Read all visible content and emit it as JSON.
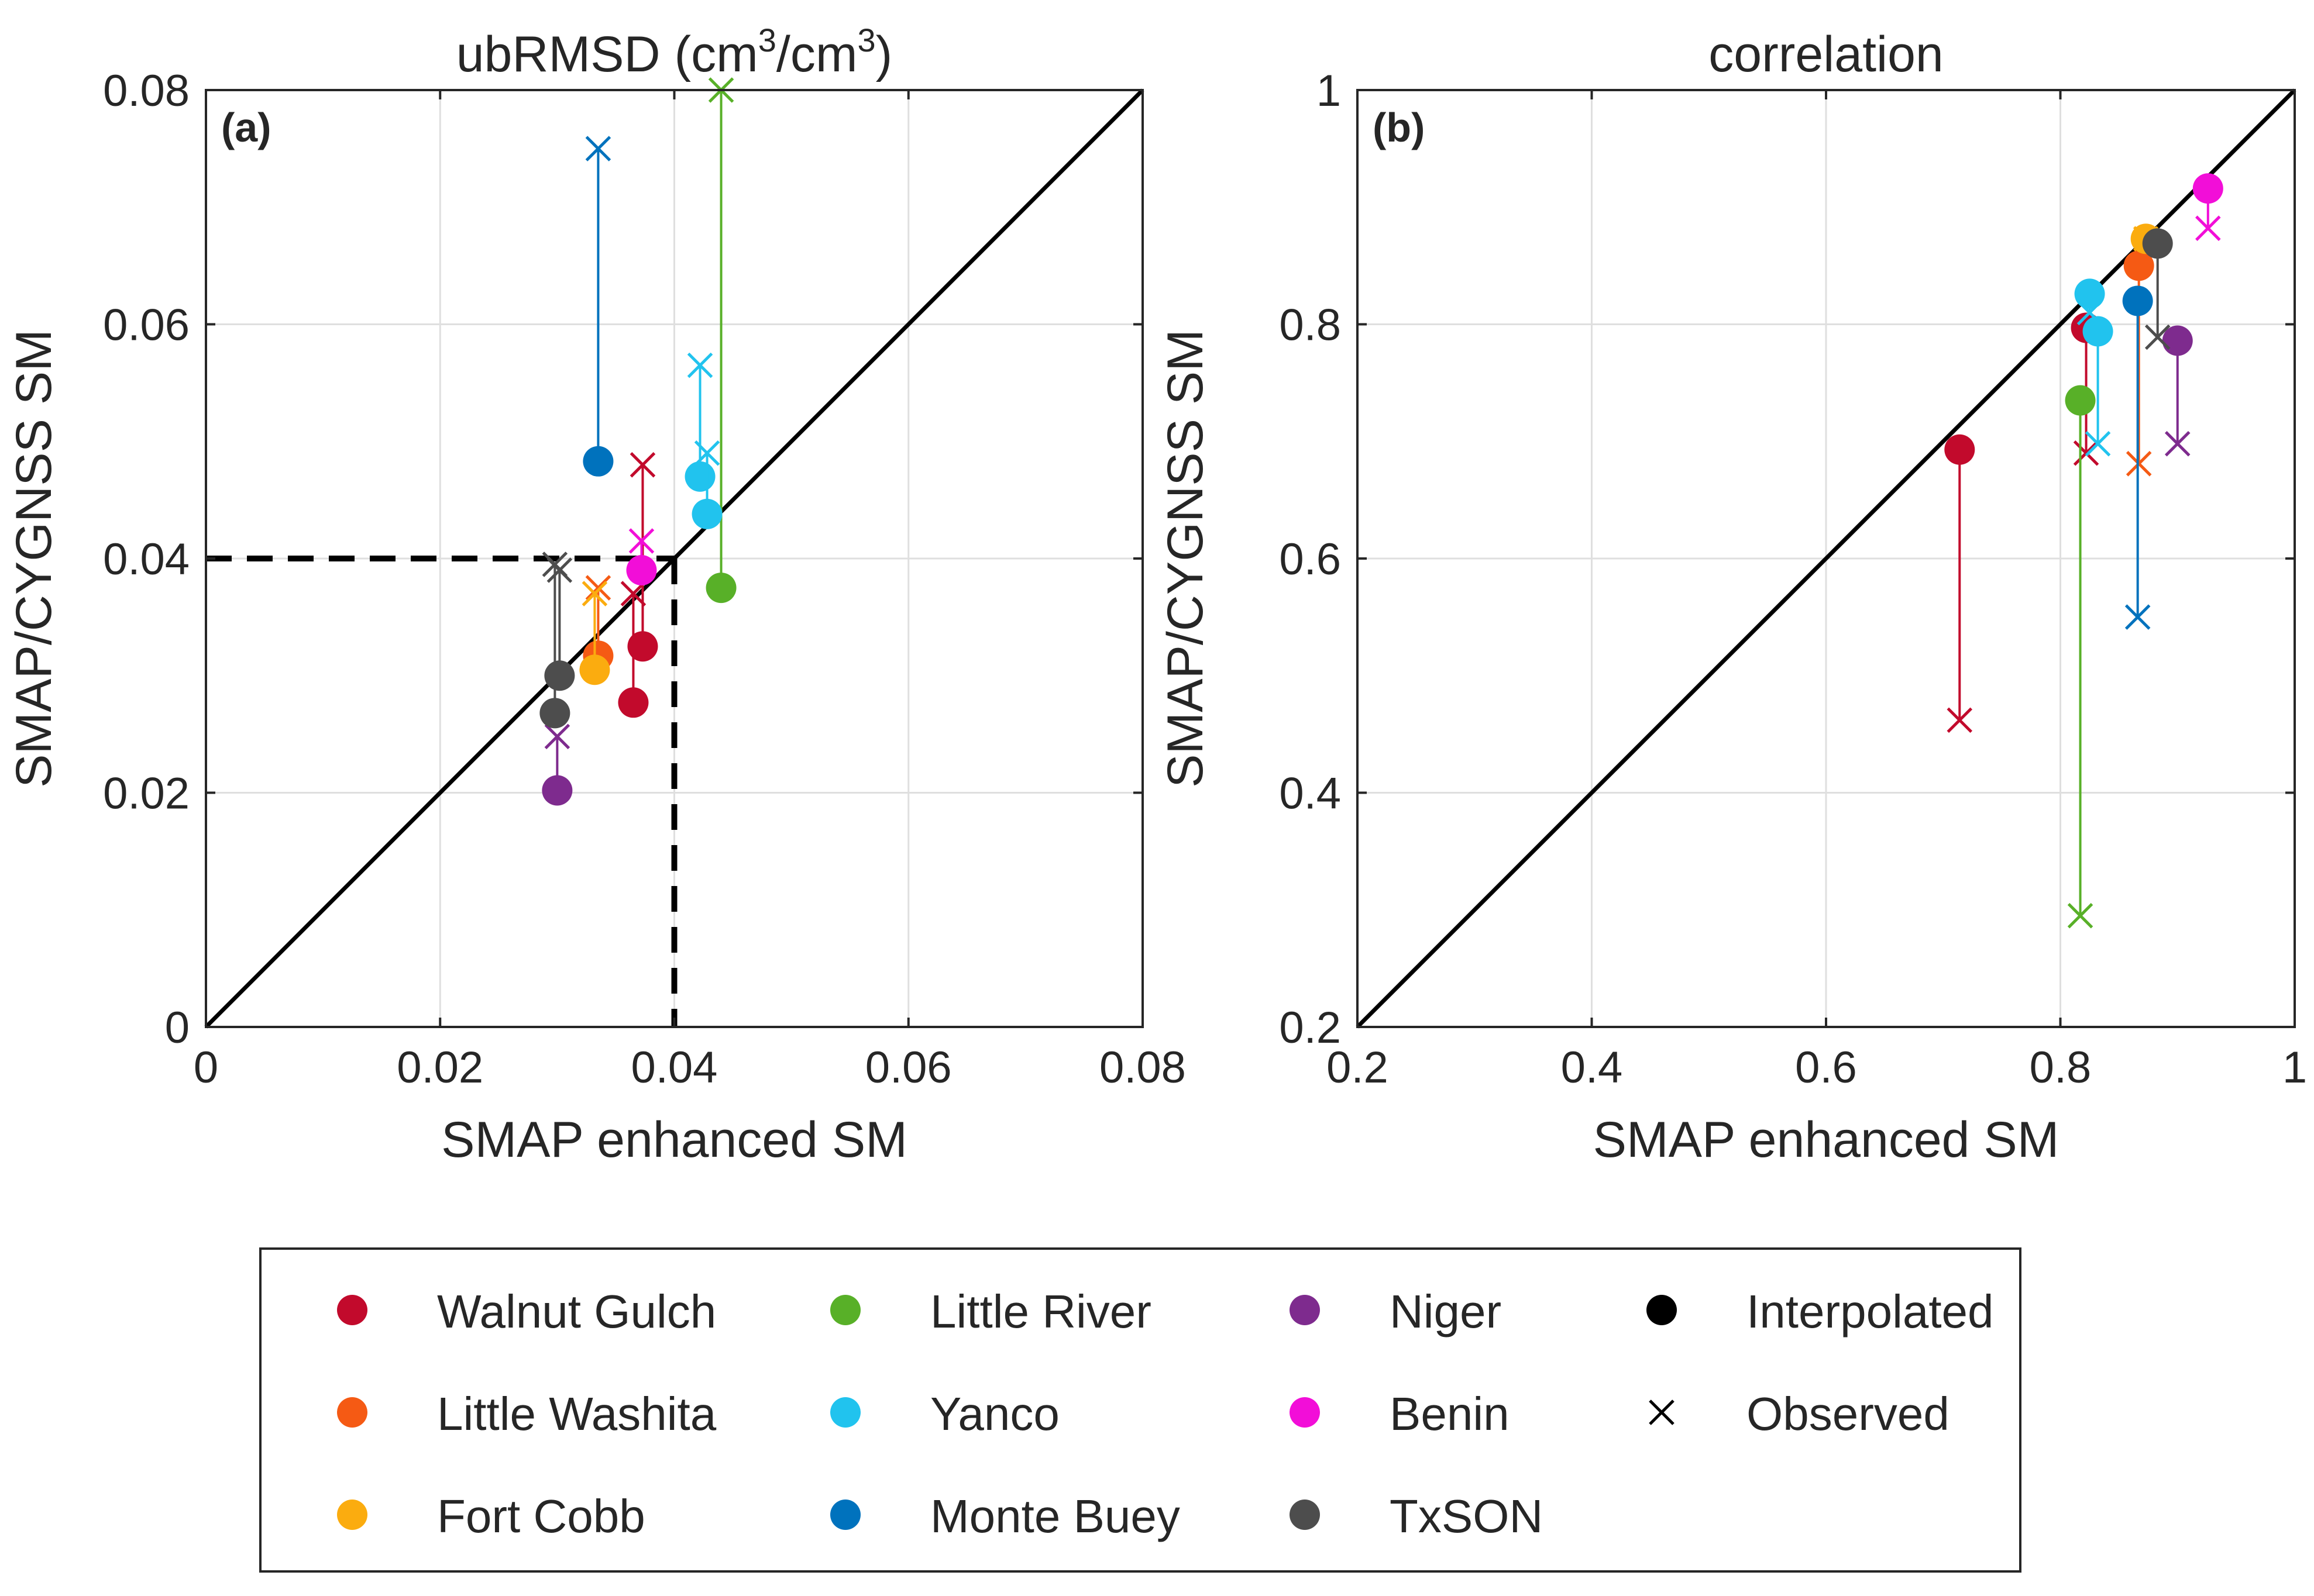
{
  "chart_data": [
    {
      "type": "scatter",
      "panel_label": "(a)",
      "title": "ubRMSD (cm3/cm3)",
      "title_parts": {
        "base": "ubRMSD (cm",
        "sup1": "3",
        "mid": "/cm",
        "sup2": "3",
        "end": ")"
      },
      "xlabel": "SMAP enhanced SM",
      "ylabel": "SMAP/CYGNSS SM",
      "xlim": [
        0,
        0.08
      ],
      "ylim": [
        0,
        0.08
      ],
      "xticks": [
        0,
        0.02,
        0.04,
        0.06,
        0.08
      ],
      "yticks": [
        0,
        0.02,
        0.04,
        0.06,
        0.08
      ],
      "xtick_labels": [
        "0",
        "0.02",
        "0.04",
        "0.06",
        "0.08"
      ],
      "ytick_labels": [
        "0",
        "0.02",
        "0.04",
        "0.06",
        "0.08"
      ],
      "grid": true,
      "reference_line": "1:1",
      "threshold_lines": {
        "x": 0.04,
        "y": 0.04
      },
      "series": [
        {
          "name": "Walnut Gulch",
          "points": [
            {
              "x": 0.0365,
              "interpolated": 0.0277,
              "observed": 0.037
            },
            {
              "x": 0.0373,
              "interpolated": 0.0325,
              "observed": 0.048
            }
          ]
        },
        {
          "name": "Little Washita",
          "points": [
            {
              "x": 0.0335,
              "interpolated": 0.0317,
              "observed": 0.0375
            }
          ]
        },
        {
          "name": "Fort Cobb",
          "points": [
            {
              "x": 0.0332,
              "interpolated": 0.0305,
              "observed": 0.037
            }
          ]
        },
        {
          "name": "Little River",
          "points": [
            {
              "x": 0.044,
              "interpolated": 0.0375,
              "observed": 0.08
            }
          ]
        },
        {
          "name": "Yanco",
          "points": [
            {
              "x": 0.0422,
              "interpolated": 0.047,
              "observed": 0.0565
            },
            {
              "x": 0.0428,
              "interpolated": 0.0438,
              "observed": 0.049
            }
          ]
        },
        {
          "name": "Monte Buey",
          "points": [
            {
              "x": 0.0335,
              "interpolated": 0.0483,
              "observed": 0.075
            }
          ]
        },
        {
          "name": "Niger",
          "points": [
            {
              "x": 0.03,
              "interpolated": 0.0202,
              "observed": 0.0248
            }
          ]
        },
        {
          "name": "Benin",
          "points": [
            {
              "x": 0.0372,
              "interpolated": 0.039,
              "observed": 0.0415
            }
          ]
        },
        {
          "name": "TxSON",
          "points": [
            {
              "x": 0.0302,
              "interpolated": 0.03,
              "observed": 0.039
            },
            {
              "x": 0.0298,
              "interpolated": 0.0268,
              "observed": 0.0395
            }
          ]
        }
      ]
    },
    {
      "type": "scatter",
      "panel_label": "(b)",
      "title": "correlation",
      "xlabel": "SMAP enhanced SM",
      "ylabel": "SMAP/CYGNSS SM",
      "xlim": [
        0.2,
        1
      ],
      "ylim": [
        0.2,
        1
      ],
      "xticks": [
        0.2,
        0.4,
        0.6,
        0.8,
        1
      ],
      "yticks": [
        0.2,
        0.4,
        0.6,
        0.8,
        1
      ],
      "xtick_labels": [
        "0.2",
        "0.4",
        "0.6",
        "0.8",
        "1"
      ],
      "ytick_labels": [
        "0.2",
        "0.4",
        "0.6",
        "0.8",
        "1"
      ],
      "grid": true,
      "reference_line": "1:1",
      "series": [
        {
          "name": "Walnut Gulch",
          "points": [
            {
              "x": 0.714,
              "interpolated": 0.693,
              "observed": 0.462
            },
            {
              "x": 0.822,
              "interpolated": 0.797,
              "observed": 0.69
            }
          ]
        },
        {
          "name": "Little Washita",
          "points": [
            {
              "x": 0.867,
              "interpolated": 0.85,
              "observed": 0.681
            }
          ]
        },
        {
          "name": "Fort Cobb",
          "points": [
            {
              "x": 0.873,
              "interpolated": 0.873,
              "observed": 0.873
            }
          ]
        },
        {
          "name": "Little River",
          "points": [
            {
              "x": 0.817,
              "interpolated": 0.735,
              "observed": 0.295
            }
          ]
        },
        {
          "name": "Yanco",
          "points": [
            {
              "x": 0.825,
              "interpolated": 0.826,
              "observed": 0.81
            },
            {
              "x": 0.832,
              "interpolated": 0.794,
              "observed": 0.698
            }
          ]
        },
        {
          "name": "Monte Buey",
          "points": [
            {
              "x": 0.866,
              "interpolated": 0.82,
              "observed": 0.55
            }
          ]
        },
        {
          "name": "Niger",
          "points": [
            {
              "x": 0.9,
              "interpolated": 0.786,
              "observed": 0.698
            }
          ]
        },
        {
          "name": "Benin",
          "points": [
            {
              "x": 0.926,
              "interpolated": 0.916,
              "observed": 0.882
            }
          ]
        },
        {
          "name": "TxSON",
          "points": [
            {
              "x": 0.883,
              "interpolated": 0.869,
              "observed": 0.789
            }
          ]
        }
      ]
    }
  ],
  "legend": {
    "items": [
      {
        "label": "Walnut Gulch",
        "marker": "dot",
        "color": "#c20a2c"
      },
      {
        "label": "Little River",
        "marker": "dot",
        "color": "#58b028"
      },
      {
        "label": "Niger",
        "marker": "dot",
        "color": "#7e2b8e"
      },
      {
        "label": "Interpolated",
        "marker": "dot",
        "color": "#000000"
      },
      {
        "label": "Little Washita",
        "marker": "dot",
        "color": "#f55a14"
      },
      {
        "label": "Yanco",
        "marker": "dot",
        "color": "#21c3ee"
      },
      {
        "label": "Benin",
        "marker": "dot",
        "color": "#f20ed8"
      },
      {
        "label": "Observed",
        "marker": "cross",
        "color": "#000000"
      },
      {
        "label": "Fort Cobb",
        "marker": "dot",
        "color": "#fbac0f"
      },
      {
        "label": "Monte Buey",
        "marker": "dot",
        "color": "#0072bd"
      },
      {
        "label": "TxSON",
        "marker": "dot",
        "color": "#4d4d4d"
      }
    ],
    "placement": "bottom-center"
  },
  "colors": {
    "Walnut Gulch": "#c20a2c",
    "Little Washita": "#f55a14",
    "Fort Cobb": "#fbac0f",
    "Little River": "#58b028",
    "Yanco": "#21c3ee",
    "Monte Buey": "#0072bd",
    "Niger": "#7e2b8e",
    "Benin": "#f20ed8",
    "TxSON": "#4d4d4d",
    "grid": "#dfdfdf",
    "axis": "#262626"
  }
}
